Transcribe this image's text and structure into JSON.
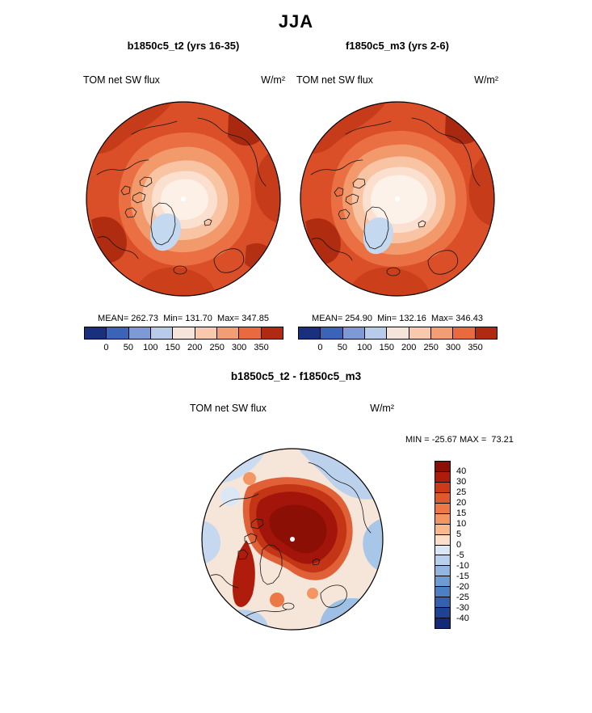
{
  "title": "JJA",
  "panels": [
    {
      "header": "b1850c5_t2 (yrs 16-35)",
      "field_label": "TOM net SW flux",
      "units": "W/m²",
      "stats": "MEAN= 262.73  Min= 131.70  Max= 347.85"
    },
    {
      "header": "f1850c5_m3 (yrs 2-6)",
      "field_label": "TOM net SW flux",
      "units": "W/m²",
      "stats": "MEAN= 254.90  Min= 132.16  Max= 346.43"
    }
  ],
  "diff": {
    "header": "b1850c5_t2 - f1850c5_m3",
    "field_label": "TOM net SW flux",
    "units": "W/m²",
    "minmax": "MIN = -25.67 MAX =  73.21"
  },
  "colorbars": {
    "flux": {
      "orientation": "horizontal",
      "colors": [
        "#1a2f7e",
        "#3b64b8",
        "#7d9ad6",
        "#b8cbe9",
        "#f6e3da",
        "#f9c9ae",
        "#f29d73",
        "#e86a3e",
        "#b02a12"
      ],
      "ticks": [
        "0",
        "50",
        "100",
        "150",
        "200",
        "250",
        "300",
        "350"
      ]
    },
    "diff": {
      "orientation": "vertical",
      "colors": [
        "#8c0f06",
        "#b01c0a",
        "#cc3a18",
        "#de5a2c",
        "#ec7845",
        "#f49664",
        "#f9b98f",
        "#fcdfc8",
        "#dbe7f5",
        "#b9d0ec",
        "#93b6e0",
        "#6f9bd4",
        "#4d7fc4",
        "#3361ae",
        "#1f4394",
        "#122a78"
      ],
      "labels": [
        "40",
        "30",
        "25",
        "20",
        "15",
        "10",
        "5",
        "0",
        "-5",
        "-10",
        "-15",
        "-20",
        "-25",
        "-30",
        "-40"
      ]
    }
  },
  "chart_data": [
    {
      "type": "heatmap",
      "projection": "polar-stereographic-north",
      "title": "b1850c5_t2 (yrs 16-35)",
      "season": "JJA",
      "variable": "TOM net SW flux",
      "units": "W/m²",
      "stats": {
        "mean": 262.73,
        "min": 131.7,
        "max": 347.85
      },
      "colorbar": {
        "orientation": "horizontal",
        "ticks": [
          0,
          50,
          100,
          150,
          200,
          250,
          300,
          350
        ],
        "palette": "blue-white-red, low values blue, high values dark red"
      },
      "description": "Mostly high flux (orange/red ~250-350) over ocean and land, pale low-flux center (~150-200) near pole, pale-blue minimum (~130-150) over Greenland ice sheet"
    },
    {
      "type": "heatmap",
      "projection": "polar-stereographic-north",
      "title": "f1850c5_m3 (yrs 2-6)",
      "season": "JJA",
      "variable": "TOM net SW flux",
      "units": "W/m²",
      "stats": {
        "mean": 254.9,
        "min": 132.16,
        "max": 346.43
      },
      "colorbar": {
        "orientation": "horizontal",
        "ticks": [
          0,
          50,
          100,
          150,
          200,
          250,
          300,
          350
        ],
        "palette": "blue-white-red, low values blue, high values dark red"
      },
      "description": "Similar pattern with larger/whiter low-flux region around the pole and pale-blue minimum over Greenland"
    },
    {
      "type": "heatmap",
      "projection": "polar-stereographic-north",
      "title": "b1850c5_t2 - f1850c5_m3",
      "season": "JJA",
      "variable": "TOM net SW flux difference",
      "units": "W/m²",
      "stats": {
        "min": -25.67,
        "max": 73.21
      },
      "colorbar": {
        "orientation": "vertical",
        "ticks": [
          40,
          30,
          25,
          20,
          15,
          10,
          5,
          0,
          -5,
          -10,
          -15,
          -20,
          -25,
          -30,
          -40
        ],
        "palette": "diverging blue (negative) to red (positive)"
      },
      "description": "Strong positive differences (dark red, >40) over central Arctic Ocean and along east Greenland; weak negative differences (pale/medium blue, -5 to -25) scattered over midlatitude periphery"
    }
  ]
}
